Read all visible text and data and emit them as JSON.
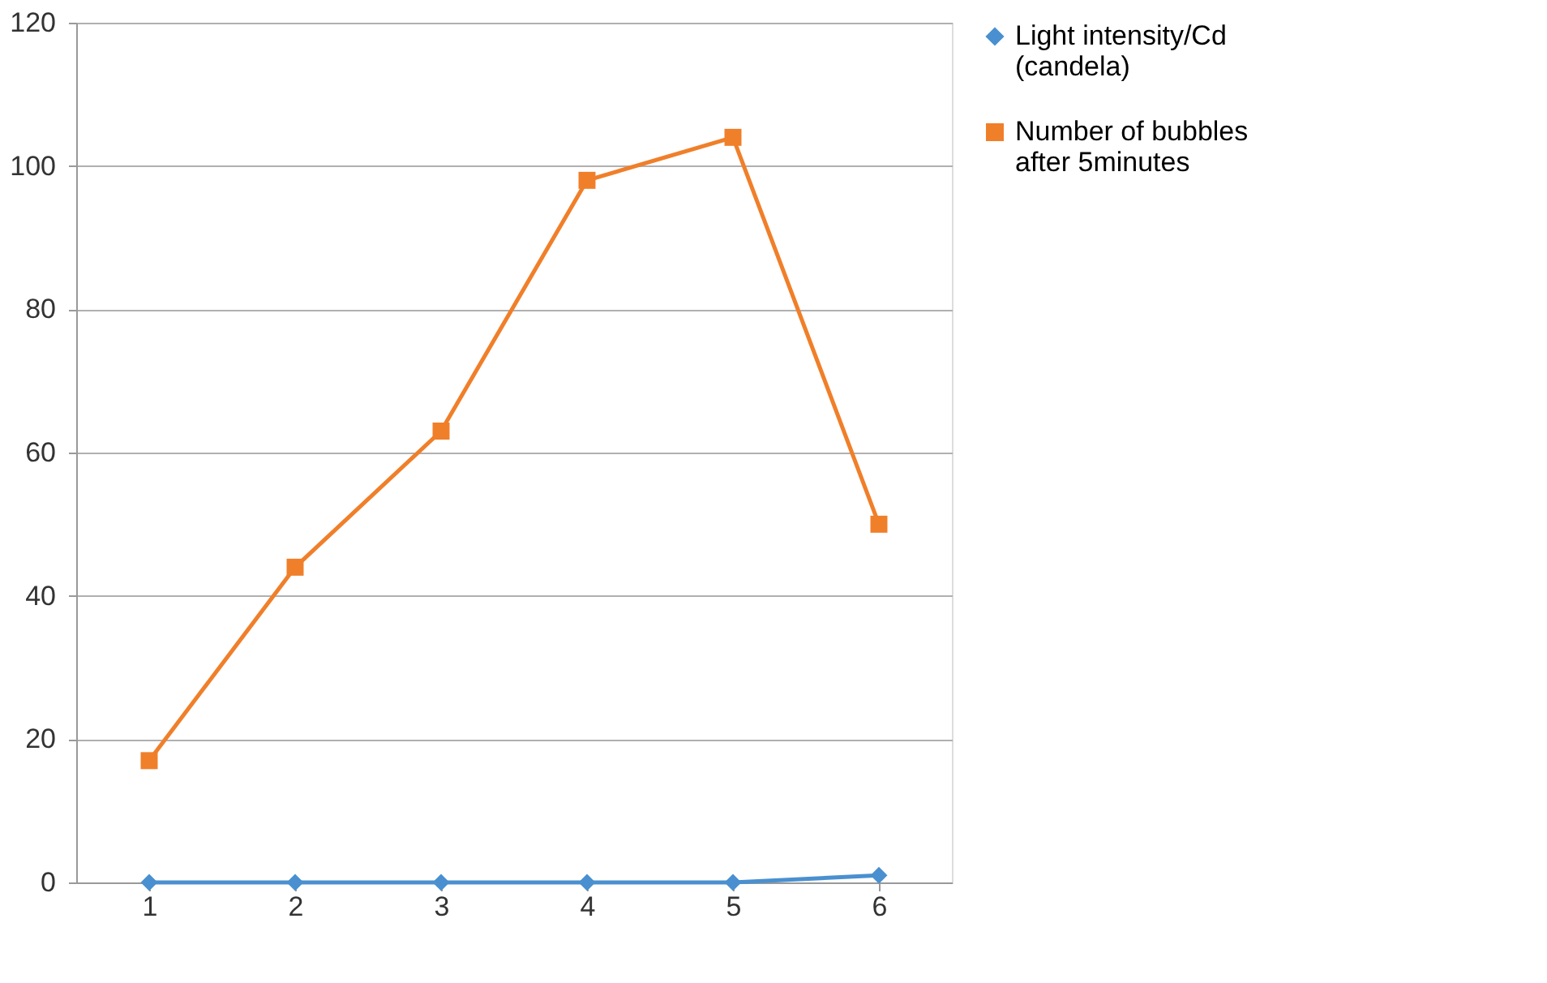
{
  "chart_data": {
    "type": "line",
    "categories": [
      "1",
      "2",
      "3",
      "4",
      "5",
      "6"
    ],
    "series": [
      {
        "name": "Light intensity/Cd (candela)",
        "color": "#4a90d0",
        "marker": "diamond",
        "values": [
          0,
          0,
          0,
          0,
          0,
          1
        ]
      },
      {
        "name": "Number of bubbles after 5minutes",
        "color": "#f07f2a",
        "marker": "square",
        "values": [
          17,
          44,
          63,
          98,
          104,
          50
        ]
      }
    ],
    "ylim": [
      0,
      120
    ],
    "yticks": [
      0,
      20,
      40,
      60,
      80,
      100,
      120
    ],
    "grid": "y",
    "legend": "right",
    "line_style": "solid"
  }
}
